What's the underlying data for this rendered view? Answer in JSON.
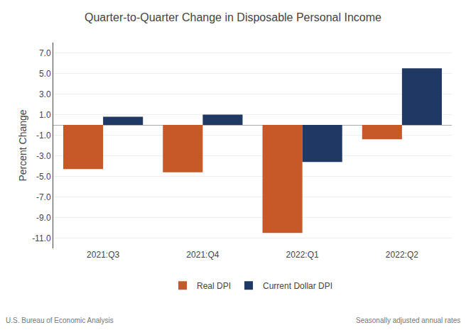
{
  "chart_data": {
    "type": "bar",
    "title": "Quarter-to-Quarter Change in Disposable Personal Income",
    "ylabel": "Percent Change",
    "categories": [
      "2021:Q3",
      "2021:Q4",
      "2022:Q1",
      "2022:Q2"
    ],
    "series": [
      {
        "name": "Real DPI",
        "color": "#C55A28",
        "values": [
          -4.3,
          -4.6,
          -10.5,
          -1.4
        ]
      },
      {
        "name": "Current Dollar DPI",
        "color": "#1F3864",
        "values": [
          0.8,
          1.0,
          -3.6,
          5.5
        ]
      }
    ],
    "ylim": [
      -12.0,
      8.0
    ],
    "yticks": [
      {
        "value": 7.0,
        "label": "7.0"
      },
      {
        "value": 5.0,
        "label": "5.0"
      },
      {
        "value": 3.0,
        "label": "3.0"
      },
      {
        "value": 1.0,
        "label": "1.0"
      },
      {
        "value": -1.0,
        "label": "-1.0"
      },
      {
        "value": -3.0,
        "label": "-3.0"
      },
      {
        "value": -5.0,
        "label": "-5.0"
      },
      {
        "value": -7.0,
        "label": "-7.0"
      },
      {
        "value": -9.0,
        "label": "-9.0"
      },
      {
        "value": -11.0,
        "label": "-11.0"
      }
    ],
    "grid": true,
    "legend": "bottom",
    "annotations": [
      "U.S. Bureau of Economic Analysis",
      "Seasonally adjusted annual rates"
    ]
  }
}
